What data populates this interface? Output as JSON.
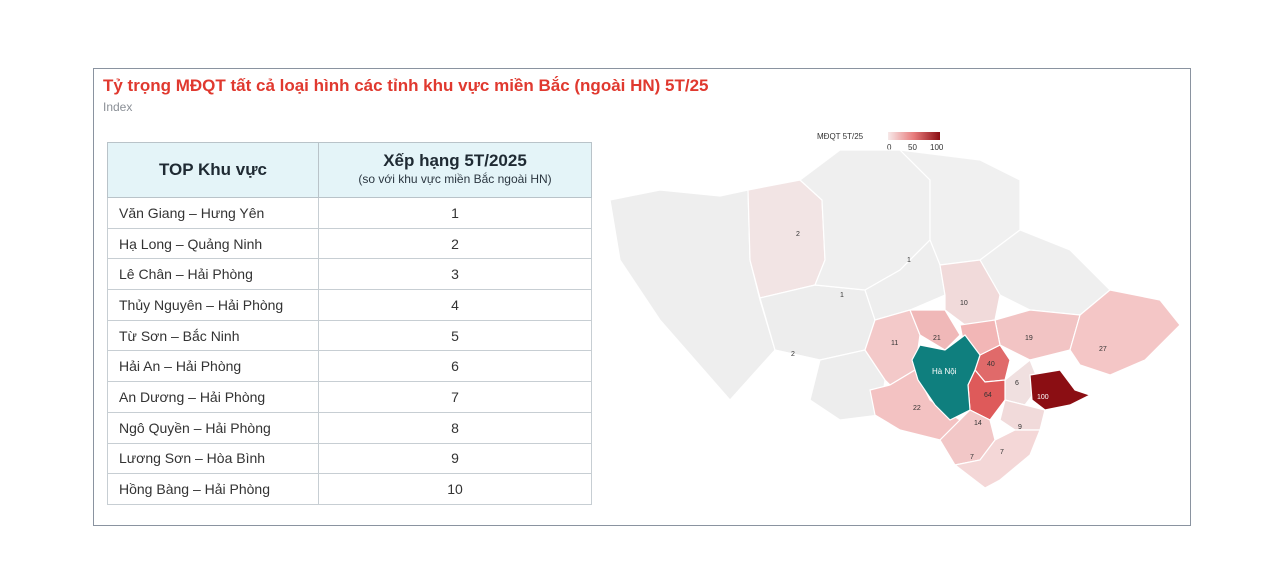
{
  "title": "Tỷ trọng MĐQT tất cả loại hình các tỉnh khu vực miền Bắc (ngoài HN) 5T/25",
  "subtitle": "Index",
  "table": {
    "col1_header": "TOP Khu vực",
    "col2_header": "Xếp hạng 5T/2025",
    "col2_subheader": "(so với khu vực miền Bắc ngoài HN)",
    "rows": [
      {
        "area": "Văn Giang – Hưng Yên",
        "rank": "1"
      },
      {
        "area": "Hạ Long – Quảng Ninh",
        "rank": "2"
      },
      {
        "area": "Lê Chân – Hải Phòng",
        "rank": "3"
      },
      {
        "area": "Thủy Nguyên – Hải Phòng",
        "rank": "4"
      },
      {
        "area": "Từ Sơn – Bắc Ninh",
        "rank": "5"
      },
      {
        "area": "Hải An – Hải Phòng",
        "rank": "6"
      },
      {
        "area": "An Dương – Hải Phòng",
        "rank": "7"
      },
      {
        "area": "Ngô Quyền – Hải Phòng",
        "rank": "8"
      },
      {
        "area": "Lương Sơn – Hòa Bình",
        "rank": "9"
      },
      {
        "area": "Hồng Bàng – Hải Phòng",
        "rank": "10"
      }
    ]
  },
  "map": {
    "legend_title": "MĐQT 5T/25",
    "legend_ticks": [
      "0",
      "50",
      "100"
    ],
    "color_low": "#f5eded",
    "color_high": "#8b0e13",
    "hanoi_color": "#0f7f7e",
    "hanoi_label": "Hà Nội",
    "region_values": [
      "2",
      "1",
      "1",
      "2",
      "10",
      "11",
      "21",
      "19",
      "27",
      "40",
      "6",
      "64",
      "100",
      "22",
      "14",
      "9",
      "7",
      "7"
    ]
  }
}
